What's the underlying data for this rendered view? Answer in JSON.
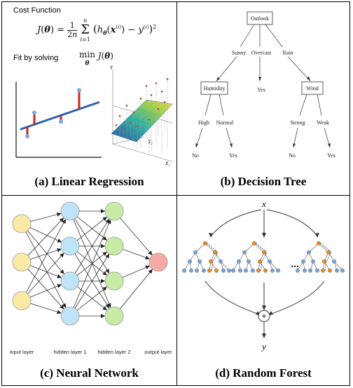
{
  "panels": {
    "a": {
      "caption": "(a) Linear Regression",
      "cost_title": "Cost Function",
      "fit_label": "Fit by solving",
      "axis_y": "Y",
      "axis_x1": "X₁",
      "axis_x2": "X₂"
    },
    "b": {
      "caption": "(b) Decision Tree",
      "root": "Outlook",
      "edges_root": [
        "Sunny",
        "Overcast",
        "Rain"
      ],
      "left_node": "Humidity",
      "mid_leaf": "Yes",
      "right_node": "Wind",
      "left_edges": [
        "High",
        "Normal"
      ],
      "right_edges": [
        "Strong",
        "Weak"
      ],
      "leaves": [
        "No",
        "Yes",
        "No",
        "Yes"
      ]
    },
    "c": {
      "caption": "(c) Neural Network",
      "layer_labels": [
        "input layer",
        "hidden layer 1",
        "hidden layer 2",
        "output layer"
      ],
      "colors": {
        "input": "#fbe9a6",
        "hidden1": "#bfe3f7",
        "hidden2": "#c8eca6",
        "output": "#f7a9a6"
      }
    },
    "d": {
      "caption": "(d) Random Forest",
      "top_label": "x",
      "ellipsis": "...",
      "combine": "+",
      "bottom_label": "y"
    }
  }
}
